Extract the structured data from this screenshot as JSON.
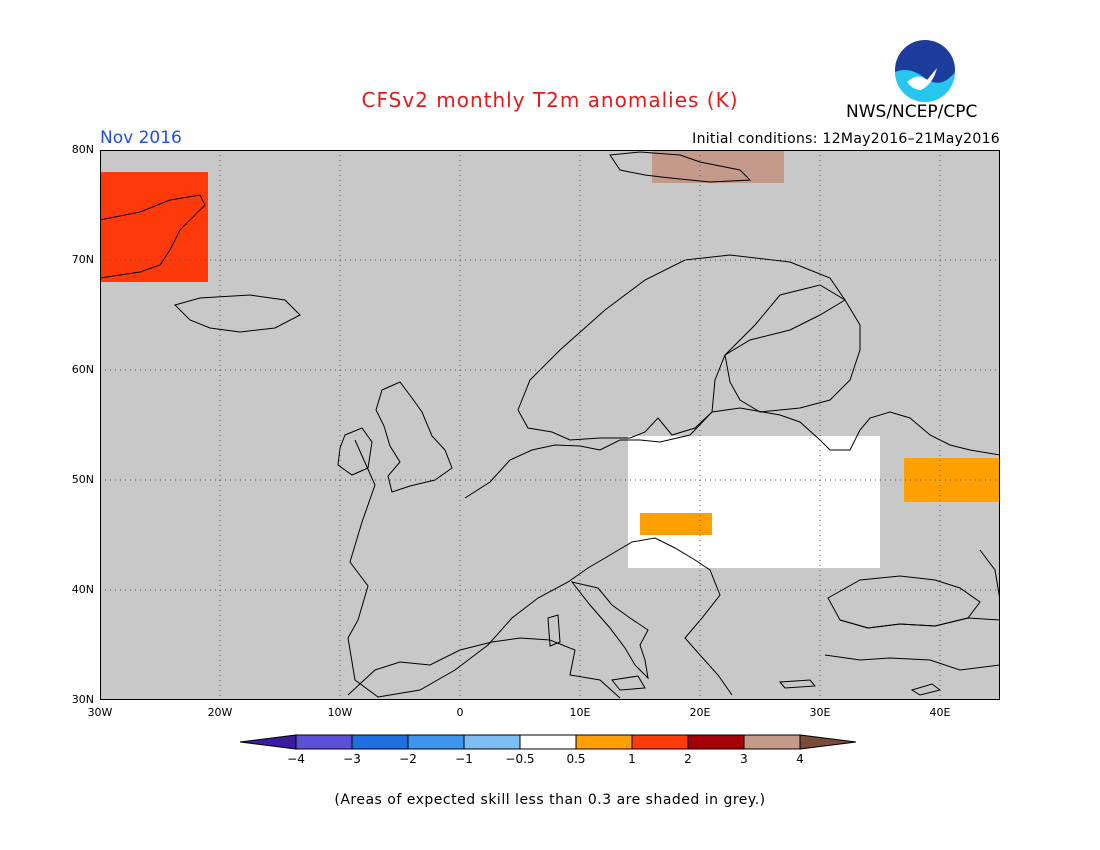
{
  "title": "CFSv2 monthly T2m anomalies (K)",
  "agency": "NWS/NCEP/CPC",
  "logo_text": "NOAA",
  "month_label": "Nov 2016",
  "initial_conditions": "Initial conditions: 12May2016–21May2016",
  "map": {
    "lon_range": [
      -30,
      45
    ],
    "lat_range": [
      30,
      80
    ],
    "lat_labels": [
      "80N",
      "70N",
      "60N",
      "50N",
      "40N",
      "30N"
    ],
    "lon_labels": [
      "30W",
      "20W",
      "10W",
      "0",
      "10E",
      "20E",
      "30E",
      "40E"
    ],
    "grid": true,
    "background": "#c8c8c8",
    "regions": [
      {
        "name": "greenland-east",
        "lon": [
          -30,
          -21
        ],
        "lat": [
          68,
          78
        ],
        "class": "1 to 2"
      },
      {
        "name": "svalbard",
        "lon": [
          16,
          27
        ],
        "lat": [
          77,
          80
        ],
        "class": "3 to 4"
      },
      {
        "name": "eastern-europe",
        "lon": [
          14,
          35
        ],
        "lat": [
          42,
          54
        ],
        "class": "-0.5 to 0.5"
      },
      {
        "name": "southern-russia",
        "lon": [
          37,
          45
        ],
        "lat": [
          48,
          52
        ],
        "class": "0.5 to 1"
      },
      {
        "name": "balkans",
        "lon": [
          15,
          21
        ],
        "lat": [
          45,
          47
        ],
        "class": "0.5 to 1"
      }
    ]
  },
  "colorbar": {
    "labels": [
      "−4",
      "−3",
      "−2",
      "−1",
      "−0.5",
      "0.5",
      "1",
      "2",
      "3",
      "4"
    ],
    "colors": [
      "#3a1a9e",
      "#5a4fd6",
      "#1f6fe0",
      "#3d95f0",
      "#7fbdf5",
      "#ffffff",
      "#ff9f00",
      "#ff3a0a",
      "#a50008",
      "#c49a8a",
      "#7a4a3a"
    ]
  },
  "note": "(Areas of expected skill less than 0.3 are shaded in grey.)"
}
